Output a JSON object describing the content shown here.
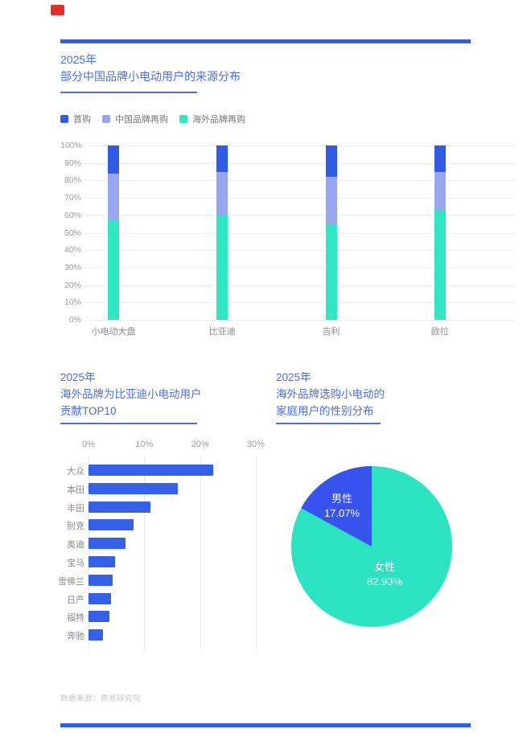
{
  "brand": {
    "color": "#E0322A"
  },
  "accent": {
    "rule_blue": "#2E5BF0",
    "title_blue": "#4B6EE2"
  },
  "sections": {
    "origin": {
      "header": "2025年\n部分中国品牌小电动用户的来源分布",
      "legend": [
        {
          "label": "首购",
          "color": "#2F5BE7"
        },
        {
          "label": "中国品牌再购",
          "color": "#98A6F2"
        },
        {
          "label": "海外品牌再购",
          "color": "#2EE8C4"
        }
      ],
      "chart_data": {
        "type": "bar",
        "stacked": true,
        "categories": [
          "小电动大盘",
          "比亚迪",
          "吉利",
          "欧拉"
        ],
        "series": [
          {
            "name": "首购",
            "color": "#2F5BE7",
            "values": [
              16,
              15,
              18,
              15
            ]
          },
          {
            "name": "中国品牌再购",
            "color": "#98A6F2",
            "values": [
              27,
              25,
              27,
              22
            ]
          },
          {
            "name": "海外品牌再购",
            "color": "#2EE8C4",
            "values": [
              57,
              60,
              55,
              63
            ]
          }
        ],
        "ylim": [
          0,
          100
        ],
        "ytick_step": 10,
        "ytick_suffix": "%",
        "grid": "horizontal",
        "legend_position": "top"
      }
    },
    "top10": {
      "header": "2025年\n海外品牌为比亚迪小电动用户\n贡献TOP10",
      "chart_data": {
        "type": "bar",
        "orientation": "horizontal",
        "categories": [
          "大众",
          "本田",
          "丰田",
          "别克",
          "奥迪",
          "宝马",
          "雪佛兰",
          "日产",
          "福特",
          "奔驰"
        ],
        "values": [
          22.4,
          16.0,
          11.1,
          8.1,
          6.7,
          4.8,
          4.3,
          4.1,
          3.7,
          2.6
        ],
        "bar_color": "#3560E9",
        "xlim": [
          0,
          30
        ],
        "xticks": [
          "0%",
          "10%",
          "20%",
          "30%"
        ],
        "grid": "vertical"
      }
    },
    "gender": {
      "header": "2025年\n海外品牌选购小电动的\n家庭用户的性别分布",
      "chart_data": {
        "type": "pie",
        "slices": [
          {
            "label": "男性",
            "value": 17.07,
            "display": "17.07%",
            "color": "#3853EE"
          },
          {
            "label": "女性",
            "value": 82.93,
            "display": "82.93%",
            "color": "#2BE3C0"
          }
        ],
        "start_angle": "top",
        "direction": "counterclockwise"
      }
    }
  },
  "footer": {
    "source": "数据来源：腾易研究院"
  }
}
